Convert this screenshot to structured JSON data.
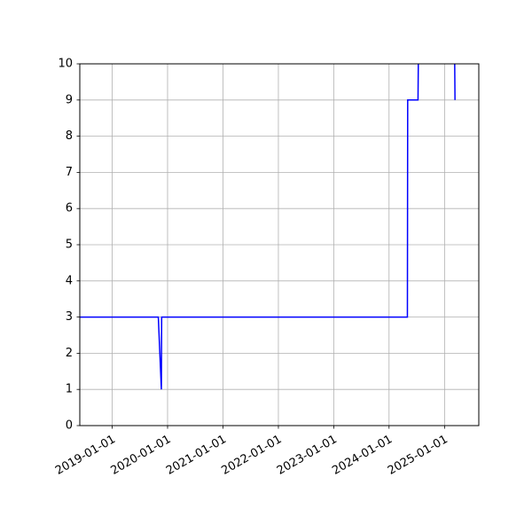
{
  "chart_data": {
    "type": "line",
    "title": "",
    "xlabel": "",
    "ylabel": "",
    "x_axis_kind": "date",
    "xlim": [
      "2018-06-01",
      "2025-08-15"
    ],
    "ylim": [
      0,
      10
    ],
    "grid": true,
    "x_tick_labels": [
      "2019-01-01",
      "2020-01-01",
      "2021-01-01",
      "2022-01-01",
      "2023-01-01",
      "2024-01-01",
      "2025-01-01"
    ],
    "y_tick_labels": [
      "0",
      "1",
      "2",
      "3",
      "4",
      "5",
      "6",
      "7",
      "8",
      "9",
      "10"
    ],
    "series": [
      {
        "color": "#0000ff",
        "segments": [
          [
            [
              "2018-06-01",
              3
            ],
            [
              "2019-11-01",
              3
            ],
            [
              "2019-11-21",
              1
            ],
            [
              "2019-11-23",
              3
            ],
            [
              "2024-05-01",
              3
            ],
            [
              "2024-05-03",
              9
            ],
            [
              "2024-07-10",
              9
            ],
            [
              "2024-07-12",
              10
            ]
          ],
          [
            [
              "2025-03-09",
              10
            ],
            [
              "2025-03-11",
              9
            ]
          ]
        ]
      }
    ]
  }
}
